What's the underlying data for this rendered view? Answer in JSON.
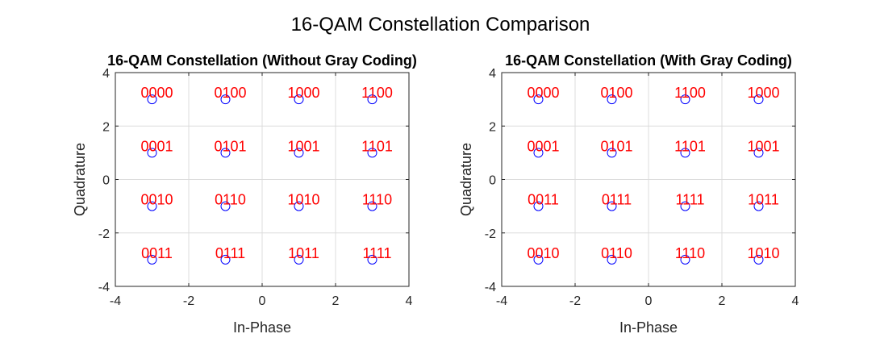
{
  "figure_title": "16-QAM Constellation Comparison",
  "chart_data": [
    {
      "type": "scatter",
      "title": "16-QAM Constellation (Without Gray Coding)",
      "xlabel": "In-Phase",
      "ylabel": "Quadrature",
      "xlim": [
        -4,
        4
      ],
      "ylim": [
        -4,
        4
      ],
      "xticks": [
        -4,
        -2,
        0,
        2,
        4
      ],
      "yticks": [
        -4,
        -2,
        0,
        2,
        4
      ],
      "grid": true,
      "marker": "open-circle",
      "marker_color": "#0000ff",
      "label_color": "#ff0000",
      "points": [
        {
          "x": -3,
          "y": 3,
          "label": "0000"
        },
        {
          "x": -1,
          "y": 3,
          "label": "0100"
        },
        {
          "x": 1,
          "y": 3,
          "label": "1000"
        },
        {
          "x": 3,
          "y": 3,
          "label": "1100"
        },
        {
          "x": -3,
          "y": 1,
          "label": "0001"
        },
        {
          "x": -1,
          "y": 1,
          "label": "0101"
        },
        {
          "x": 1,
          "y": 1,
          "label": "1001"
        },
        {
          "x": 3,
          "y": 1,
          "label": "1101"
        },
        {
          "x": -3,
          "y": -1,
          "label": "0010"
        },
        {
          "x": -1,
          "y": -1,
          "label": "0110"
        },
        {
          "x": 1,
          "y": -1,
          "label": "1010"
        },
        {
          "x": 3,
          "y": -1,
          "label": "1110"
        },
        {
          "x": -3,
          "y": -3,
          "label": "0011"
        },
        {
          "x": -1,
          "y": -3,
          "label": "0111"
        },
        {
          "x": 1,
          "y": -3,
          "label": "1011"
        },
        {
          "x": 3,
          "y": -3,
          "label": "1111"
        }
      ]
    },
    {
      "type": "scatter",
      "title": "16-QAM Constellation (With Gray Coding)",
      "xlabel": "In-Phase",
      "ylabel": "Quadrature",
      "xlim": [
        -4,
        4
      ],
      "ylim": [
        -4,
        4
      ],
      "xticks": [
        -4,
        -2,
        0,
        2,
        4
      ],
      "yticks": [
        -4,
        -2,
        0,
        2,
        4
      ],
      "grid": true,
      "marker": "open-circle",
      "marker_color": "#0000ff",
      "label_color": "#ff0000",
      "points": [
        {
          "x": -3,
          "y": 3,
          "label": "0000"
        },
        {
          "x": -1,
          "y": 3,
          "label": "0100"
        },
        {
          "x": 1,
          "y": 3,
          "label": "1100"
        },
        {
          "x": 3,
          "y": 3,
          "label": "1000"
        },
        {
          "x": -3,
          "y": 1,
          "label": "0001"
        },
        {
          "x": -1,
          "y": 1,
          "label": "0101"
        },
        {
          "x": 1,
          "y": 1,
          "label": "1101"
        },
        {
          "x": 3,
          "y": 1,
          "label": "1001"
        },
        {
          "x": -3,
          "y": -1,
          "label": "0011"
        },
        {
          "x": -1,
          "y": -1,
          "label": "0111"
        },
        {
          "x": 1,
          "y": -1,
          "label": "1111"
        },
        {
          "x": 3,
          "y": -1,
          "label": "1011"
        },
        {
          "x": -3,
          "y": -3,
          "label": "0010"
        },
        {
          "x": -1,
          "y": -3,
          "label": "0110"
        },
        {
          "x": 1,
          "y": -3,
          "label": "1110"
        },
        {
          "x": 3,
          "y": -3,
          "label": "1010"
        }
      ]
    }
  ]
}
